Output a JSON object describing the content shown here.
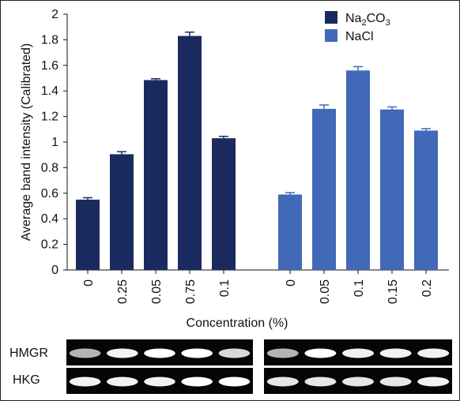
{
  "chart_data": {
    "type": "bar",
    "ylabel": "Average band intensity (Calibrated)",
    "xlabel": "Concentration (%)",
    "ylim": [
      0,
      2
    ],
    "yticks": [
      "0",
      "0.2",
      "0.4",
      "0.6",
      "0.8",
      "1",
      "1.2",
      "1.4",
      "1.6",
      "1.8",
      "2"
    ],
    "grid": false,
    "legend_position": "top-right",
    "series": [
      {
        "name": "Na2CO3",
        "color": "#1b2a5e",
        "categories": [
          "0",
          "0.25",
          "0.05",
          "0.75",
          "0.1"
        ],
        "values": [
          0.55,
          0.905,
          1.485,
          1.83,
          1.03
        ],
        "errors": [
          0.015,
          0.02,
          0.01,
          0.03,
          0.015
        ]
      },
      {
        "name": "NaCl",
        "color": "#4169b8",
        "categories": [
          "0",
          "0.05",
          "0.1",
          "0.15",
          "0.2"
        ],
        "values": [
          0.59,
          1.26,
          1.56,
          1.255,
          1.09
        ],
        "errors": [
          0.015,
          0.03,
          0.03,
          0.02,
          0.015
        ]
      }
    ]
  },
  "legend": {
    "na2co3": {
      "base": "Na",
      "sub1": "2",
      "mid": "CO",
      "sub2": "3"
    },
    "nacl": "NaCl"
  },
  "gel": {
    "rows": [
      "HMGR",
      "HKG"
    ],
    "lanes_per_panel": 5,
    "panels": 2
  }
}
